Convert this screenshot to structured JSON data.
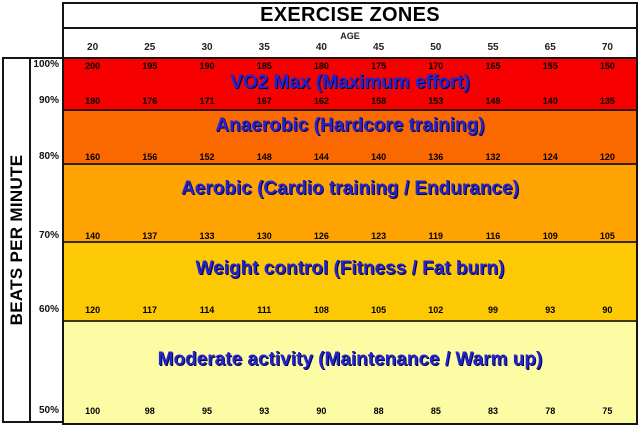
{
  "chart_data": {
    "type": "heatmap",
    "title": "EXERCISE ZONES",
    "x_axis": {
      "label": "AGE",
      "ticks": [
        "20",
        "25",
        "30",
        "35",
        "40",
        "45",
        "50",
        "55",
        "65",
        "70"
      ]
    },
    "y_axis": {
      "label": "BEATS PER MINUTE",
      "ticks": [
        "100%",
        "90%",
        "80%",
        "70%",
        "60%",
        "50%"
      ]
    },
    "bpm_rows": [
      {
        "percent": "100%",
        "values": [
          "200",
          "195",
          "190",
          "185",
          "180",
          "175",
          "170",
          "165",
          "155",
          "150"
        ]
      },
      {
        "percent": "90%",
        "values": [
          "180",
          "176",
          "171",
          "167",
          "162",
          "158",
          "153",
          "149",
          "140",
          "135"
        ]
      },
      {
        "percent": "80%",
        "values": [
          "160",
          "156",
          "152",
          "148",
          "144",
          "140",
          "136",
          "132",
          "124",
          "120"
        ]
      },
      {
        "percent": "70%",
        "values": [
          "140",
          "137",
          "133",
          "130",
          "126",
          "123",
          "119",
          "116",
          "109",
          "105"
        ]
      },
      {
        "percent": "60%",
        "values": [
          "120",
          "117",
          "114",
          "111",
          "108",
          "105",
          "102",
          "99",
          "93",
          "90"
        ]
      },
      {
        "percent": "50%",
        "values": [
          "100",
          "98",
          "95",
          "93",
          "90",
          "88",
          "85",
          "83",
          "78",
          "75"
        ]
      }
    ],
    "zones": [
      {
        "label": "VO2 Max (Maximum effort)",
        "percent_range": "90%–100%",
        "color": "#f70000"
      },
      {
        "label": "Anaerobic (Hardcore training)",
        "percent_range": "80%–90%",
        "color": "#fa6800"
      },
      {
        "label": "Aerobic (Cardio training / Endurance)",
        "percent_range": "70%–80%",
        "color": "#ffa303"
      },
      {
        "label": "Weight control (Fitness / Fat burn)",
        "percent_range": "60%–70%",
        "color": "#fdc804"
      },
      {
        "label": "Moderate activity (Maintenance / Warm up)",
        "percent_range": "50%–60%",
        "color": "#fcfca4"
      }
    ],
    "label_color": "#2424cd",
    "grid_on": true,
    "legend_position": "none"
  }
}
